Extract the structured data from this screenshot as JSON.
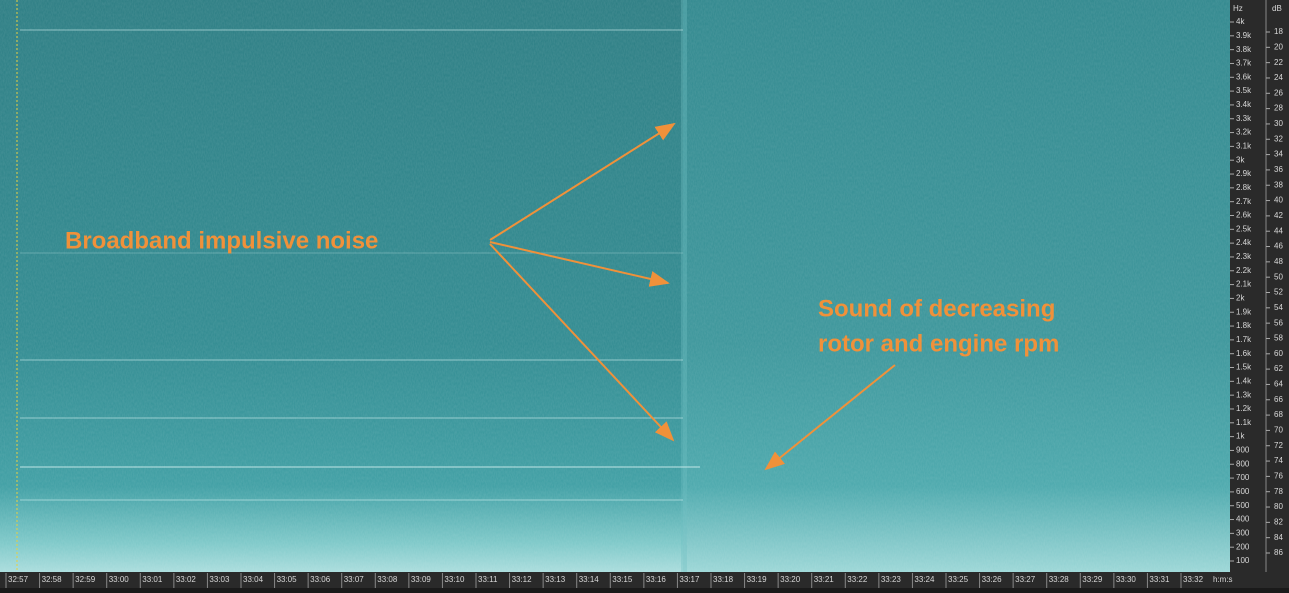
{
  "spectrogram": {
    "time_ticks": [
      "32:57",
      "32:58",
      "32:59",
      "33:00",
      "33:01",
      "33:02",
      "33:03",
      "33:04",
      "33:05",
      "33:06",
      "33:07",
      "33:08",
      "33:09",
      "33:10",
      "33:11",
      "33:12",
      "33:13",
      "33:14",
      "33:15",
      "33:16",
      "33:17",
      "33:18",
      "33:19",
      "33:20",
      "33:21",
      "33:22",
      "33:23",
      "33:24",
      "33:25",
      "33:26",
      "33:27",
      "33:28",
      "33:29",
      "33:30",
      "33:31",
      "33:32"
    ],
    "time_unit": "h:m:s",
    "freq_unit": "Hz",
    "freq_ticks": [
      "4k",
      "3.9k",
      "3.8k",
      "3.7k",
      "3.6k",
      "3.5k",
      "3.4k",
      "3.3k",
      "3.2k",
      "3.1k",
      "3k",
      "2.9k",
      "2.8k",
      "2.7k",
      "2.6k",
      "2.5k",
      "2.4k",
      "2.3k",
      "2.2k",
      "2.1k",
      "2k",
      "1.9k",
      "1.8k",
      "1.7k",
      "1.6k",
      "1.5k",
      "1.4k",
      "1.3k",
      "1.2k",
      "1.1k",
      "1k",
      "900",
      "800",
      "700",
      "600",
      "500",
      "400",
      "300",
      "200",
      "100"
    ],
    "db_unit": "dB",
    "db_ticks": [
      "18",
      "20",
      "22",
      "24",
      "26",
      "28",
      "30",
      "32",
      "34",
      "36",
      "38",
      "40",
      "42",
      "44",
      "46",
      "48",
      "50",
      "52",
      "54",
      "56",
      "58",
      "60",
      "62",
      "64",
      "66",
      "68",
      "70",
      "72",
      "74",
      "76",
      "78",
      "80",
      "82",
      "84",
      "86"
    ]
  },
  "annotations": {
    "broadband": "Broadband impulsive noise",
    "rotor_line1": "Sound of decreasing",
    "rotor_line2": "rotor and engine rpm"
  }
}
